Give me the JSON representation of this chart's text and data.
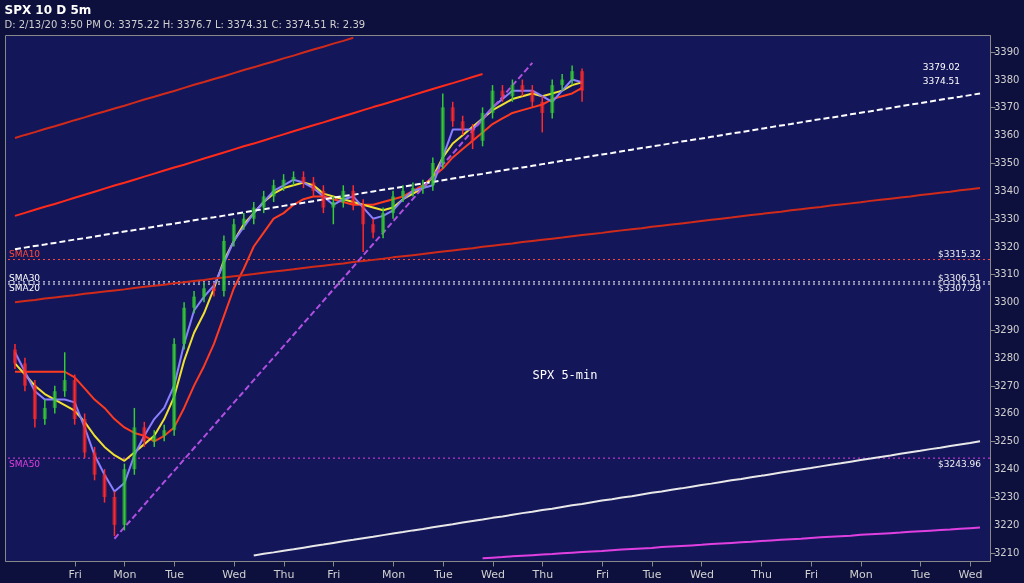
{
  "chart_data": {
    "type": "candlestick",
    "title": "SPX 10 D 5m",
    "subtitle": "D: 2/13/20 3:50 PM   O: 3375.22   H: 3376.7   L: 3374.31   C: 3374.51   R: 2.39",
    "categories": [
      null,
      null,
      null,
      null,
      null,
      null,
      "Fri",
      null,
      null,
      null,
      null,
      "Mon",
      null,
      null,
      null,
      null,
      "Tue",
      null,
      null,
      null,
      null,
      null,
      "Wed",
      null,
      null,
      null,
      null,
      "Thu",
      null,
      null,
      null,
      null,
      "Fri",
      null,
      null,
      null,
      null,
      null,
      "Mon",
      null,
      null,
      null,
      null,
      "Tue",
      null,
      null,
      null,
      null,
      "Wed",
      null,
      null,
      null,
      null,
      "Thu",
      null,
      null,
      null,
      null,
      null,
      "Fri",
      null,
      null,
      null,
      null,
      "Tue",
      null,
      null,
      null,
      null,
      "Wed",
      null,
      null,
      null,
      null,
      null,
      "Thu",
      null,
      null,
      null,
      null,
      "Fri",
      null,
      null,
      null,
      null,
      "Mon",
      null,
      null,
      null,
      null,
      null,
      "Tue",
      null,
      null,
      null,
      null,
      "Wed",
      null
    ],
    "ohlc": [
      [
        3283,
        3285,
        3276,
        3278
      ],
      [
        3278,
        3280,
        3268,
        3270
      ],
      [
        3270,
        3272,
        3255,
        3258
      ],
      [
        3258,
        3265,
        3256,
        3262
      ],
      [
        3262,
        3270,
        3260,
        3268
      ],
      [
        3268,
        3282,
        3266,
        3272
      ],
      [
        3272,
        3274,
        3256,
        3258
      ],
      [
        3258,
        3260,
        3244,
        3246
      ],
      [
        3246,
        3248,
        3236,
        3238
      ],
      [
        3238,
        3240,
        3228,
        3230
      ],
      [
        3230,
        3232,
        3216,
        3220
      ],
      [
        3220,
        3242,
        3218,
        3240
      ],
      [
        3240,
        3262,
        3238,
        3255
      ],
      [
        3255,
        3257,
        3248,
        3250
      ],
      [
        3250,
        3254,
        3248,
        3252
      ],
      [
        3252,
        3256,
        3250,
        3254
      ],
      [
        3254,
        3287,
        3252,
        3285
      ],
      [
        3285,
        3300,
        3283,
        3298
      ],
      [
        3298,
        3304,
        3296,
        3302
      ],
      [
        3302,
        3307,
        3300,
        3305
      ],
      [
        3305,
        3307,
        3302,
        3304
      ],
      [
        3304,
        3324,
        3302,
        3322
      ],
      [
        3322,
        3330,
        3320,
        3328
      ],
      [
        3328,
        3332,
        3326,
        3330
      ],
      [
        3330,
        3336,
        3328,
        3334
      ],
      [
        3334,
        3340,
        3332,
        3338
      ],
      [
        3338,
        3344,
        3336,
        3342
      ],
      [
        3342,
        3346,
        3340,
        3344
      ],
      [
        3344,
        3347,
        3342,
        3345
      ],
      [
        3345,
        3347,
        3341,
        3343
      ],
      [
        3343,
        3345,
        3338,
        3340
      ],
      [
        3340,
        3342,
        3332,
        3334
      ],
      [
        3334,
        3338,
        3328,
        3336
      ],
      [
        3336,
        3342,
        3334,
        3340
      ],
      [
        3340,
        3342,
        3333,
        3335
      ],
      [
        3335,
        3337,
        3318,
        3328
      ],
      [
        3328,
        3330,
        3323,
        3325
      ],
      [
        3325,
        3334,
        3323,
        3332
      ],
      [
        3332,
        3340,
        3330,
        3338
      ],
      [
        3338,
        3342,
        3336,
        3340
      ],
      [
        3340,
        3343,
        3338,
        3341
      ],
      [
        3341,
        3344,
        3339,
        3342
      ],
      [
        3342,
        3352,
        3340,
        3350
      ],
      [
        3350,
        3375,
        3348,
        3370
      ],
      [
        3370,
        3372,
        3363,
        3365
      ],
      [
        3365,
        3367,
        3360,
        3362
      ],
      [
        3362,
        3364,
        3355,
        3358
      ],
      [
        3358,
        3370,
        3356,
        3368
      ],
      [
        3368,
        3378,
        3366,
        3376
      ],
      [
        3376,
        3378,
        3372,
        3374
      ],
      [
        3374,
        3380,
        3372,
        3378
      ],
      [
        3378,
        3380,
        3374,
        3376
      ],
      [
        3376,
        3378,
        3370,
        3372
      ],
      [
        3372,
        3374,
        3361,
        3368
      ],
      [
        3368,
        3380,
        3366,
        3378
      ],
      [
        3378,
        3382,
        3376,
        3380
      ],
      [
        3380,
        3385,
        3378,
        3383
      ],
      [
        3383,
        3384,
        3372,
        3376
      ],
      null,
      null,
      null,
      null,
      null,
      null,
      null,
      null,
      null,
      null,
      null,
      null,
      null,
      null,
      null,
      null,
      null,
      null,
      null,
      null,
      null,
      null,
      null,
      null,
      null,
      null,
      null,
      null,
      null,
      null,
      null,
      null,
      null,
      null,
      null,
      null,
      null,
      null,
      null,
      null
    ],
    "colors": [
      "#ff2a2a",
      "#ff2a2a",
      "#ff2a2a",
      "#33cc33",
      "#33cc33",
      "#33cc33",
      "#ff2a2a",
      "#ff2a2a",
      "#ff2a2a",
      "#ff2a2a",
      "#ff2a2a",
      "#33cc33",
      "#33cc33",
      "#ff2a2a",
      "#33cc33",
      "#33cc33",
      "#33cc33",
      "#33cc33",
      "#33cc33",
      "#33cc33",
      "#ff2a2a",
      "#33cc33",
      "#33cc33",
      "#33cc33",
      "#33cc33",
      "#33cc33",
      "#33cc33",
      "#33cc33",
      "#33cc33",
      "#ff2a2a",
      "#ff2a2a",
      "#ff2a2a",
      "#33cc33",
      "#33cc33",
      "#ff2a2a",
      "#ff2a2a",
      "#ff2a2a",
      "#33cc33",
      "#33cc33",
      "#33cc33",
      "#33cc33",
      "#33cc33",
      "#33cc33",
      "#33cc33",
      "#ff2a2a",
      "#ff2a2a",
      "#ff2a2a",
      "#33cc33",
      "#33cc33",
      "#ff2a2a",
      "#33cc33",
      "#ff2a2a",
      "#ff2a2a",
      "#ff2a2a",
      "#33cc33",
      "#33cc33",
      "#33cc33",
      "#ff2a2a",
      null,
      null,
      null,
      null,
      null,
      null,
      null,
      null,
      null,
      null,
      null,
      null,
      null,
      null,
      null,
      null,
      null,
      null,
      null,
      null,
      null,
      null,
      null,
      null,
      null,
      null,
      null,
      null,
      null,
      null,
      null,
      null,
      null,
      null,
      null,
      null,
      null,
      null,
      null,
      null
    ],
    "series": [
      {
        "type": "line",
        "color": "#ff3b1f",
        "values": [
          3275,
          3275,
          3275,
          3275,
          3275,
          3275,
          3273,
          3269,
          3265,
          3262,
          3258,
          3255,
          3253,
          3252,
          3250,
          3252,
          3255,
          3262,
          3270,
          3277,
          3285,
          3295,
          3305,
          3312,
          3320,
          3325,
          3330,
          3332,
          3335,
          3337,
          3338,
          3338,
          3337,
          3336,
          3335,
          3335,
          3335,
          3336,
          3337,
          3338,
          3340,
          3342,
          3345,
          3348,
          3352,
          3355,
          3358,
          3361,
          3364,
          3366,
          3368,
          3369,
          3370,
          3371,
          3373,
          3374,
          3375,
          3377,
          null,
          null,
          null,
          null,
          null,
          null,
          null,
          null,
          null,
          null,
          null,
          null,
          null,
          null,
          null,
          null,
          null,
          null,
          null,
          null,
          null,
          null,
          null,
          null,
          null,
          null,
          null,
          null,
          null,
          null,
          null,
          null,
          null,
          null,
          null,
          null,
          null,
          null,
          null,
          null
        ]
      },
      {
        "type": "line",
        "color": "#f0e030",
        "values": [
          3278,
          3274,
          3270,
          3267,
          3265,
          3263,
          3261,
          3257,
          3252,
          3248,
          3245,
          3243,
          3246,
          3249,
          3252,
          3258,
          3266,
          3279,
          3289,
          3296,
          3305,
          3315,
          3322,
          3328,
          3332,
          3336,
          3339,
          3341,
          3342,
          3343,
          3342,
          3339,
          3338,
          3337,
          3336,
          3335,
          3334,
          3333,
          3334,
          3337,
          3339,
          3341,
          3345,
          3352,
          3357,
          3360,
          3363,
          3366,
          3369,
          3371,
          3373,
          3374,
          3375,
          3374,
          3375,
          3376,
          3378,
          3379,
          null,
          null,
          null,
          null,
          null,
          null,
          null,
          null,
          null,
          null,
          null,
          null,
          null,
          null,
          null,
          null,
          null,
          null,
          null,
          null,
          null,
          null,
          null,
          null,
          null,
          null,
          null,
          null,
          null,
          null,
          null,
          null,
          null,
          null,
          null,
          null,
          null,
          null,
          null,
          null
        ]
      },
      {
        "type": "line",
        "color": "#8a80ff",
        "values": [
          3282,
          3275,
          3268,
          3265,
          3265,
          3265,
          3264,
          3255,
          3245,
          3238,
          3232,
          3235,
          3245,
          3252,
          3258,
          3262,
          3270,
          3285,
          3297,
          3302,
          3306,
          3314,
          3322,
          3327,
          3332,
          3336,
          3340,
          3342,
          3344,
          3343,
          3341,
          3338,
          3335,
          3337,
          3338,
          3334,
          3330,
          3331,
          3333,
          3337,
          3340,
          3341,
          3342,
          3352,
          3362,
          3362,
          3362,
          3366,
          3370,
          3373,
          3376,
          3376,
          3376,
          3374,
          3372,
          3376,
          3380,
          3379,
          null,
          null,
          null,
          null,
          null,
          null,
          null,
          null,
          null,
          null,
          null,
          null,
          null,
          null,
          null,
          null,
          null,
          null,
          null,
          null,
          null,
          null,
          null,
          null,
          null,
          null,
          null,
          null,
          null,
          null,
          null,
          null,
          null,
          null,
          null,
          null,
          null,
          null,
          null,
          null
        ]
      },
      {
        "type": "line",
        "color": "#ffffff",
        "line_style": "dashed",
        "values": [
          3319.0,
          3319.6,
          3320.2,
          3320.7,
          3321.3,
          3321.9,
          3322.5,
          3323.0,
          3323.6,
          3324.2,
          3324.8,
          3325.4,
          3325.9,
          3326.5,
          3327.1,
          3327.7,
          3328.2,
          3328.8,
          3329.4,
          3330.0,
          3330.5,
          3331.1,
          3331.7,
          3332.3,
          3332.9,
          3333.4,
          3334.0,
          3334.6,
          3335.2,
          3335.7,
          3336.3,
          3336.9,
          3337.5,
          3338.1,
          3338.6,
          3339.2,
          3339.8,
          3340.4,
          3340.9,
          3341.5,
          3342.1,
          3342.7,
          3343.2,
          3343.8,
          3344.4,
          3345.0,
          3345.6,
          3346.1,
          3346.7,
          3347.3,
          3347.9,
          3348.4,
          3349.0,
          3349.6,
          3350.2,
          3350.8,
          3351.3,
          3351.9,
          3352.5,
          3353.1,
          3353.6,
          3354.2,
          3354.8,
          3355.4,
          3355.9,
          3356.5,
          3357.1,
          3357.7,
          3358.3,
          3358.8,
          3359.4,
          3360.0,
          3360.6,
          3361.1,
          3361.7,
          3362.3,
          3362.9,
          3363.5,
          3364.0,
          3364.6,
          3365.2,
          3365.8,
          3366.3,
          3366.9,
          3367.5,
          3368.1,
          3368.6,
          3369.2,
          3369.8,
          3370.4,
          3371.0,
          3371.5,
          3372.1,
          3372.7,
          3373.3,
          3373.8,
          3374.4,
          3375.0
        ]
      },
      {
        "type": "line",
        "color": "#ff2a1a",
        "values": [
          3331.0,
          3332.1,
          3333.2,
          3334.3,
          3335.3,
          3336.4,
          3337.5,
          3338.6,
          3339.7,
          3340.8,
          3341.9,
          3342.9,
          3344.0,
          3345.1,
          3346.2,
          3347.3,
          3348.4,
          3349.4,
          3350.5,
          3351.6,
          3352.7,
          3353.8,
          3354.9,
          3356.0,
          3357.0,
          3358.1,
          3359.2,
          3360.3,
          3361.4,
          3362.5,
          3363.6,
          3364.6,
          3365.7,
          3366.8,
          3367.9,
          3369.0,
          3370.1,
          3371.1,
          3372.2,
          3373.3,
          3374.4,
          3375.5,
          3376.6,
          3377.7,
          3378.7,
          3379.8,
          3380.9,
          3382.0,
          null,
          null,
          null,
          null,
          null,
          null,
          null,
          null,
          null,
          null,
          null,
          null,
          null,
          null,
          null,
          null,
          null,
          null,
          null,
          null,
          null,
          null,
          null,
          null,
          null,
          null,
          null,
          null,
          null,
          null,
          null,
          null,
          null,
          null,
          null,
          null,
          null,
          null,
          null,
          null,
          null,
          null,
          null,
          null,
          null,
          null,
          null,
          null,
          null,
          null
        ]
      },
      {
        "type": "line",
        "color": "#d02a1a",
        "values": [
          3359.0,
          3360.1,
          3361.1,
          3362.2,
          3363.2,
          3364.3,
          3365.4,
          3366.4,
          3367.5,
          3368.5,
          3369.6,
          3370.6,
          3371.7,
          3372.8,
          3373.8,
          3374.9,
          3375.9,
          3377.0,
          3378.1,
          3379.1,
          3380.2,
          3381.2,
          3382.3,
          3383.4,
          3384.4,
          3385.5,
          3386.5,
          3387.6,
          3388.6,
          3389.7,
          3390.8,
          3391.8,
          3392.9,
          3393.9,
          3395.0,
          null,
          null,
          null,
          null,
          null,
          null,
          null,
          null,
          null,
          null,
          null,
          null,
          null,
          null,
          null,
          null,
          null,
          null,
          null,
          null,
          null,
          null,
          null,
          null,
          null,
          null,
          null,
          null,
          null,
          null,
          null,
          null,
          null,
          null,
          null,
          null,
          null,
          null,
          null,
          null,
          null,
          null,
          null,
          null,
          null,
          null,
          null,
          null,
          null,
          null,
          null,
          null,
          null,
          null,
          null,
          null,
          null,
          null,
          null,
          null,
          null,
          null,
          null
        ]
      },
      {
        "type": "line",
        "color": "#d02a1a",
        "values": [
          3300.0,
          3300.4,
          3300.8,
          3301.3,
          3301.7,
          3302.1,
          3302.5,
          3303.0,
          3303.4,
          3303.8,
          3304.2,
          3304.6,
          3305.1,
          3305.5,
          3305.9,
          3306.3,
          3306.8,
          3307.2,
          3307.6,
          3308.0,
          3308.5,
          3308.9,
          3309.3,
          3309.7,
          3310.1,
          3310.6,
          3311.0,
          3311.4,
          3311.8,
          3312.3,
          3312.7,
          3313.1,
          3313.5,
          3313.9,
          3314.4,
          3314.8,
          3315.2,
          3315.6,
          3316.1,
          3316.5,
          3316.9,
          3317.3,
          3317.8,
          3318.2,
          3318.6,
          3319.0,
          3319.4,
          3319.9,
          3320.3,
          3320.7,
          3321.1,
          3321.6,
          3322.0,
          3322.4,
          3322.8,
          3323.2,
          3323.7,
          3324.1,
          3324.5,
          3324.9,
          3325.4,
          3325.8,
          3326.2,
          3326.6,
          3327.1,
          3327.5,
          3327.9,
          3328.3,
          3328.7,
          3329.2,
          3329.6,
          3330.0,
          3330.4,
          3330.9,
          3331.3,
          3331.7,
          3332.1,
          3332.5,
          3333.0,
          3333.4,
          3333.8,
          3334.2,
          3334.7,
          3335.1,
          3335.5,
          3335.9,
          3336.4,
          3336.8,
          3337.2,
          3337.6,
          3338.0,
          3338.5,
          3338.9,
          3339.3,
          3339.7,
          3340.2,
          3340.6,
          3341.0
        ]
      },
      {
        "type": "line",
        "color": "#e8e8e8",
        "values": [
          null,
          null,
          null,
          null,
          null,
          null,
          null,
          null,
          null,
          null,
          null,
          null,
          null,
          null,
          null,
          null,
          null,
          null,
          null,
          null,
          null,
          null,
          null,
          null,
          3209.0,
          3209.6,
          3210.1,
          3210.7,
          3211.2,
          3211.8,
          3212.4,
          3212.9,
          3213.5,
          3214.1,
          3214.6,
          3215.2,
          3215.7,
          3216.3,
          3216.9,
          3217.4,
          3218.0,
          3218.5,
          3219.1,
          3219.7,
          3220.2,
          3220.8,
          3221.4,
          3221.9,
          3222.5,
          3223.0,
          3223.6,
          3224.2,
          3224.7,
          3225.3,
          3225.8,
          3226.4,
          3227.0,
          3227.5,
          3228.1,
          3228.7,
          3229.2,
          3229.8,
          3230.3,
          3230.9,
          3231.5,
          3232.0,
          3232.6,
          3233.1,
          3233.7,
          3234.3,
          3234.8,
          3235.4,
          3236.0,
          3236.5,
          3237.1,
          3237.6,
          3238.2,
          3238.8,
          3239.3,
          3239.9,
          3240.4,
          3241.0,
          3241.6,
          3242.1,
          3242.7,
          3243.3,
          3243.8,
          3244.4,
          3244.9,
          3245.5,
          3246.1,
          3246.6,
          3247.2,
          3247.7,
          3248.3,
          3248.9,
          3249.4,
          3250.0
        ]
      },
      {
        "type": "line",
        "color": "#e040e0",
        "values": [
          null,
          null,
          null,
          null,
          null,
          null,
          null,
          null,
          null,
          null,
          null,
          null,
          null,
          null,
          null,
          null,
          null,
          null,
          null,
          null,
          null,
          null,
          null,
          null,
          null,
          null,
          null,
          null,
          null,
          null,
          null,
          null,
          null,
          null,
          null,
          null,
          null,
          null,
          null,
          null,
          null,
          null,
          null,
          null,
          null,
          null,
          null,
          3208.0,
          3208.2,
          3208.4,
          3208.7,
          3208.9,
          3209.1,
          3209.3,
          3209.5,
          3209.8,
          3210.0,
          3210.2,
          3210.4,
          3210.6,
          3210.9,
          3211.1,
          3211.3,
          3211.5,
          3211.7,
          3212.0,
          3212.2,
          3212.4,
          3212.6,
          3212.8,
          3213.1,
          3213.3,
          3213.5,
          3213.7,
          3213.9,
          3214.2,
          3214.4,
          3214.6,
          3214.8,
          3215.0,
          3215.3,
          3215.5,
          3215.7,
          3215.9,
          3216.1,
          3216.4,
          3216.6,
          3216.8,
          3217.0,
          3217.2,
          3217.5,
          3217.7,
          3217.9,
          3218.1,
          3218.3,
          3218.6,
          3218.8,
          3219.0
        ]
      },
      {
        "type": "line",
        "color": "#b050e0",
        "line_style": "dashed",
        "values": [
          null,
          null,
          null,
          null,
          null,
          null,
          null,
          null,
          null,
          null,
          3215.0,
          3219.1,
          3223.1,
          3227.2,
          3231.3,
          3235.4,
          3239.4,
          3243.5,
          3247.6,
          3251.6,
          3255.7,
          3259.8,
          3263.9,
          3267.9,
          3272.0,
          3276.1,
          3280.1,
          3284.2,
          3288.3,
          3292.4,
          3296.4,
          3300.5,
          3304.6,
          3308.6,
          3312.7,
          3316.8,
          3320.9,
          3324.9,
          3329.0,
          3333.1,
          3337.1,
          3341.2,
          3345.3,
          3349.4,
          3353.4,
          3357.5,
          3361.6,
          3365.6,
          3369.7,
          3373.8,
          3377.9,
          3381.9,
          3386.0,
          null,
          null,
          null,
          null,
          null,
          null,
          null,
          null,
          null,
          null,
          null,
          null,
          null,
          null,
          null,
          null,
          null,
          null,
          null,
          null,
          null,
          null,
          null,
          null,
          null,
          null,
          null,
          null,
          null,
          null,
          null,
          null,
          null,
          null,
          null,
          null,
          null,
          null,
          null,
          null,
          null,
          null,
          null,
          null,
          null
        ]
      }
    ],
    "ref_lines": [
      {
        "axis": "y",
        "value": 3315.32,
        "label": "SMA10",
        "color": "#ff4a3a",
        "line_style": "dotted"
      },
      {
        "axis": "y",
        "value": 3307.29,
        "label": "SMA20",
        "color": "#ffffff",
        "line_style": "dotted"
      },
      {
        "axis": "y",
        "value": 3306.51,
        "label": "SMA30",
        "color": "#ffffff",
        "line_style": "dotted"
      },
      {
        "axis": "y",
        "value": 3243.96,
        "label": "SMA50",
        "color": "#e040e0",
        "line_style": "dotted"
      }
    ],
    "annotations": [
      {
        "text": "$3315.32",
        "y": 3315.32
      },
      {
        "text": "$3307.29",
        "y": 3307.29
      },
      {
        "text": "$3306.51",
        "y": 3306.51
      },
      {
        "text": "$3243.96",
        "y": 3243.96
      },
      "3379.02",
      "3374.51",
      "SPX 5-min"
    ],
    "ylim": [
      3207,
      3396
    ],
    "yticks": [
      3210,
      3220,
      3230,
      3240,
      3250,
      3260,
      3270,
      3280,
      3290,
      3300,
      3310,
      3320,
      3330,
      3340,
      3350,
      3360,
      3370,
      3380,
      3390
    ],
    "grid": false
  }
}
